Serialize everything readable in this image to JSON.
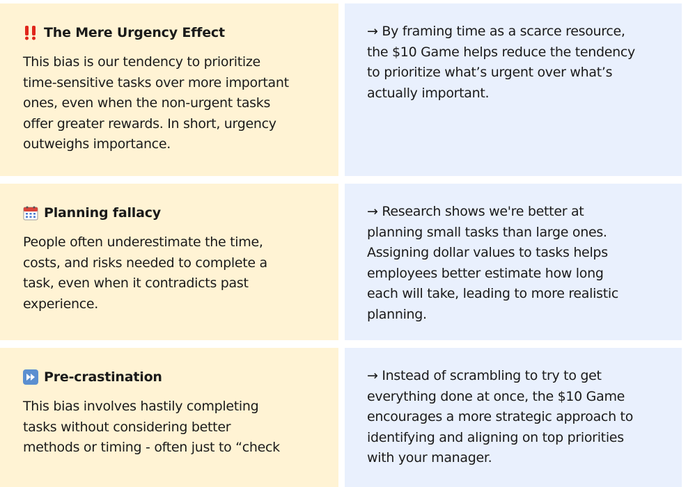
{
  "rows": [
    {
      "icon": "double-exclamation-icon",
      "title": "The Mere Urgency Effect",
      "description": "This bias is our tendency to prioritize\ntime-sensitive tasks over more important\nones, even when the non-urgent tasks\noffer greater rewards. In short, urgency\noutweighs importance.",
      "solution": "→ By framing time as a scarce resource,\nthe $10 Game helps reduce the tendency\nto prioritize what’s urgent over what’s\nactually important."
    },
    {
      "icon": "calendar-icon",
      "title": "Planning fallacy",
      "description": "People often underestimate the time,\ncosts, and risks needed to complete a\ntask, even when it contradicts past\nexperience.",
      "solution": "→ Research shows we're better at\nplanning small tasks than large ones.\nAssigning dollar values to tasks helps\nemployees better estimate how long\neach will take, leading to more realistic\nplanning."
    },
    {
      "icon": "fast-forward-icon",
      "title": "Pre-crastination",
      "description": "This bias involves hastily completing\ntasks without considering better\nmethods or timing - often just to “check",
      "solution": "→ Instead of scrambling to try to get\neverything done at once, the $10 Game\nencourages a more strategic approach to\nidentifying and aligning on top priorities\nwith your manager."
    }
  ],
  "colors": {
    "left_bg": "#fff3d4",
    "right_bg": "#e9f0fd",
    "exclamation": "#e0261b",
    "fast_forward": "#5b8fd0"
  }
}
